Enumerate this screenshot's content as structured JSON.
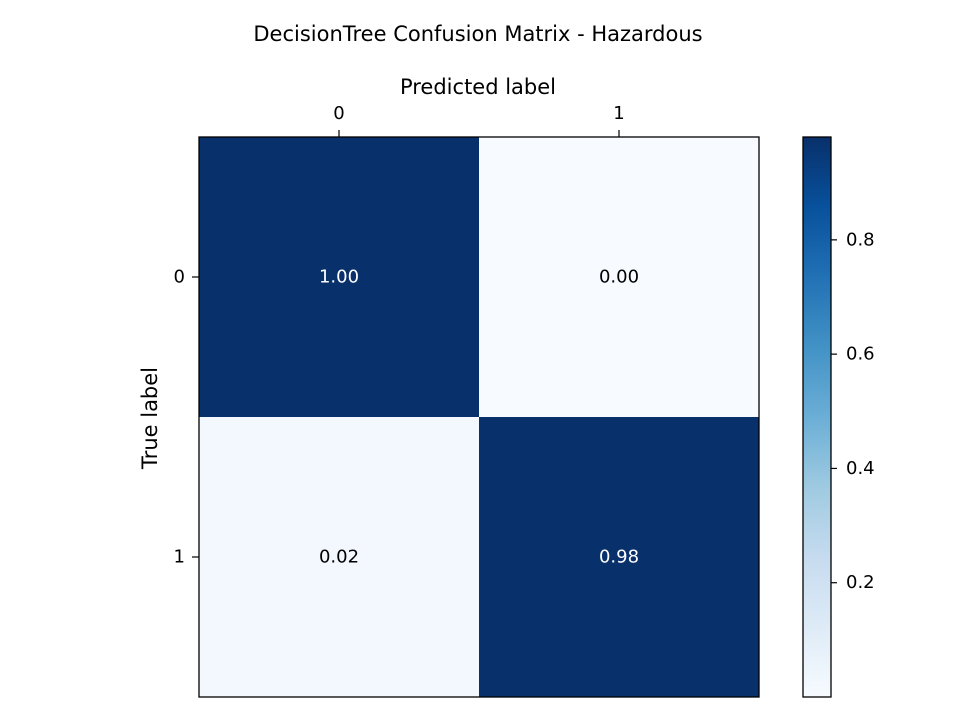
{
  "chart_data": {
    "type": "heatmap",
    "title": "DecisionTree Confusion Matrix - Hazardous",
    "xlabel": "Predicted label",
    "ylabel": "True label",
    "x_categories": [
      "0",
      "1"
    ],
    "y_categories": [
      "0",
      "1"
    ],
    "values": [
      [
        1.0,
        0.0
      ],
      [
        0.02,
        0.98
      ]
    ],
    "cell_labels": [
      [
        "1.00",
        "0.00"
      ],
      [
        "0.02",
        "0.98"
      ]
    ],
    "colormap": "Blues",
    "colorbar": {
      "range": [
        0.0,
        0.98
      ],
      "ticks": [
        0.2,
        0.4,
        0.6,
        0.8
      ],
      "tick_labels": [
        "0.2",
        "0.4",
        "0.6",
        "0.8"
      ]
    },
    "colors": {
      "dark_text": "#000000",
      "light_text": "#ffffff",
      "cmap_low": "#f7fbff",
      "cmap_high": "#08306b"
    }
  }
}
